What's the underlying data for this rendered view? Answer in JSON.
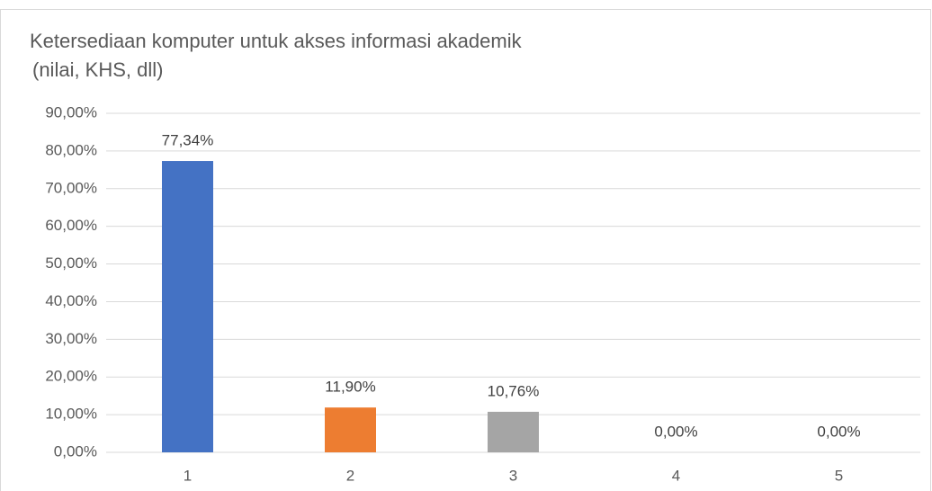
{
  "chart_data": {
    "type": "bar",
    "title": [
      "Ketersediaan komputer untuk akses informasi akademik",
      "(nilai, KHS, dll)"
    ],
    "categories": [
      "1",
      "2",
      "3",
      "4",
      "5"
    ],
    "values": [
      77.34,
      11.9,
      10.76,
      0,
      0
    ],
    "value_labels": [
      "77,34%",
      "11,90%",
      "10,76%",
      "0,00%",
      "0,00%"
    ],
    "colors": [
      "#4472c4",
      "#ed7d31",
      "#a5a5a5",
      "#ffc000",
      "#5b9bd5"
    ],
    "ylim": [
      0,
      90
    ],
    "yticks": [
      {
        "value": 0,
        "label": "0,00%"
      },
      {
        "value": 10,
        "label": "10,00%"
      },
      {
        "value": 20,
        "label": "20,00%"
      },
      {
        "value": 30,
        "label": "30,00%"
      },
      {
        "value": 40,
        "label": "40,00%"
      },
      {
        "value": 50,
        "label": "50,00%"
      },
      {
        "value": 60,
        "label": "60,00%"
      },
      {
        "value": 70,
        "label": "70,00%"
      },
      {
        "value": 80,
        "label": "80,00%"
      },
      {
        "value": 90,
        "label": "90,00%"
      }
    ],
    "grid": true
  }
}
